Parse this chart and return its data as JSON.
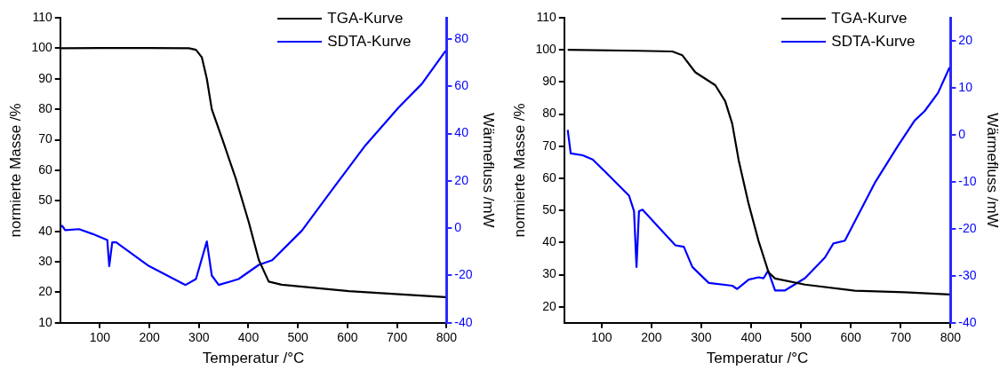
{
  "chart_data": [
    {
      "type": "line",
      "xlabel": "Temperatur /°C",
      "ylabel": "normierte Masse /%",
      "y2label": "Wärmefluss /mW",
      "xlim": [
        20,
        800
      ],
      "xticks": [
        100,
        200,
        300,
        400,
        500,
        600,
        700,
        800
      ],
      "ylim": [
        10,
        110
      ],
      "yticks": [
        10,
        20,
        30,
        40,
        50,
        60,
        70,
        80,
        90,
        100,
        110
      ],
      "y2lim": [
        -40,
        89
      ],
      "y2ticks": [
        -40,
        -20,
        0,
        20,
        40,
        60,
        80
      ],
      "grid": false,
      "legend": "top right",
      "line_style": "solid",
      "marker": "none",
      "series": [
        {
          "name": "TGA-Kurve",
          "color": "#000000",
          "x": [
            22,
            100,
            200,
            280,
            294,
            306,
            316,
            326,
            347,
            375,
            401,
            421,
            441,
            467,
            603,
            798
          ],
          "values": [
            100,
            100.1,
            100.1,
            100,
            99.5,
            97,
            90,
            80,
            70.3,
            57,
            42.8,
            30.6,
            23.5,
            22.5,
            20.4,
            18.4
          ]
        },
        {
          "name": "SDTA-Kurve",
          "color": "#0000ff",
          "axis": "y2",
          "x": [
            22,
            24,
            30,
            58,
            85,
            115,
            119,
            125,
            133,
            199,
            273,
            294,
            316,
            326,
            340,
            380,
            421,
            448,
            508,
            568,
            636,
            703,
            750,
            798
          ],
          "values": [
            0.5,
            1,
            -0.8,
            -0.4,
            -2.4,
            -5,
            -16,
            -6,
            -6,
            -16,
            -24,
            -21.5,
            -5.6,
            -20,
            -24,
            -21.5,
            -15.5,
            -13.5,
            -1,
            16,
            35,
            51,
            61,
            75
          ]
        }
      ]
    },
    {
      "type": "line",
      "xlabel": "Temperatur /°C",
      "ylabel": "normierte Masse /%",
      "y2label": "Wärmefluss /mW",
      "xlim": [
        25,
        800
      ],
      "xticks": [
        100,
        200,
        300,
        400,
        500,
        600,
        700,
        800
      ],
      "ylim": [
        15,
        110
      ],
      "yticks": [
        20,
        30,
        40,
        50,
        60,
        70,
        80,
        90,
        100,
        110
      ],
      "y2lim": [
        -40,
        25
      ],
      "y2ticks": [
        -40,
        -30,
        -20,
        -10,
        0,
        10,
        20
      ],
      "grid": false,
      "legend": "top right",
      "line_style": "solid",
      "marker": "none",
      "series": [
        {
          "name": "TGA-Kurve",
          "color": "#000000",
          "x": [
            32,
            175,
            242,
            262,
            288,
            308,
            328,
            348,
            362,
            375,
            395,
            415,
            435,
            448,
            508,
            608,
            708,
            798
          ],
          "values": [
            100,
            99.7,
            99.5,
            98.3,
            93,
            91,
            89,
            84,
            77,
            65.6,
            52,
            40.4,
            30.7,
            28.8,
            26.9,
            25,
            24.5,
            23.8
          ]
        },
        {
          "name": "SDTA-Kurve",
          "color": "#0000ff",
          "axis": "y2",
          "x": [
            32,
            38,
            62,
            82,
            108,
            155,
            165,
            170,
            175,
            182,
            248,
            265,
            282,
            315,
            362,
            372,
            395,
            415,
            425,
            434,
            448,
            468,
            508,
            548,
            565,
            588,
            648,
            695,
            728,
            748,
            775,
            798
          ],
          "values": [
            1.1,
            -3.9,
            -4.3,
            -5.2,
            -7.9,
            -12.9,
            -16.2,
            -28.1,
            -16.2,
            -15.9,
            -23.5,
            -23.8,
            -28.1,
            -31.5,
            -32.1,
            -32.8,
            -30.8,
            -30.3,
            -30.5,
            -28.9,
            -33.1,
            -33.1,
            -30.5,
            -26.1,
            -23.1,
            -22.5,
            -10.2,
            -2.2,
            3.1,
            5.1,
            9,
            14.4
          ]
        }
      ]
    }
  ]
}
